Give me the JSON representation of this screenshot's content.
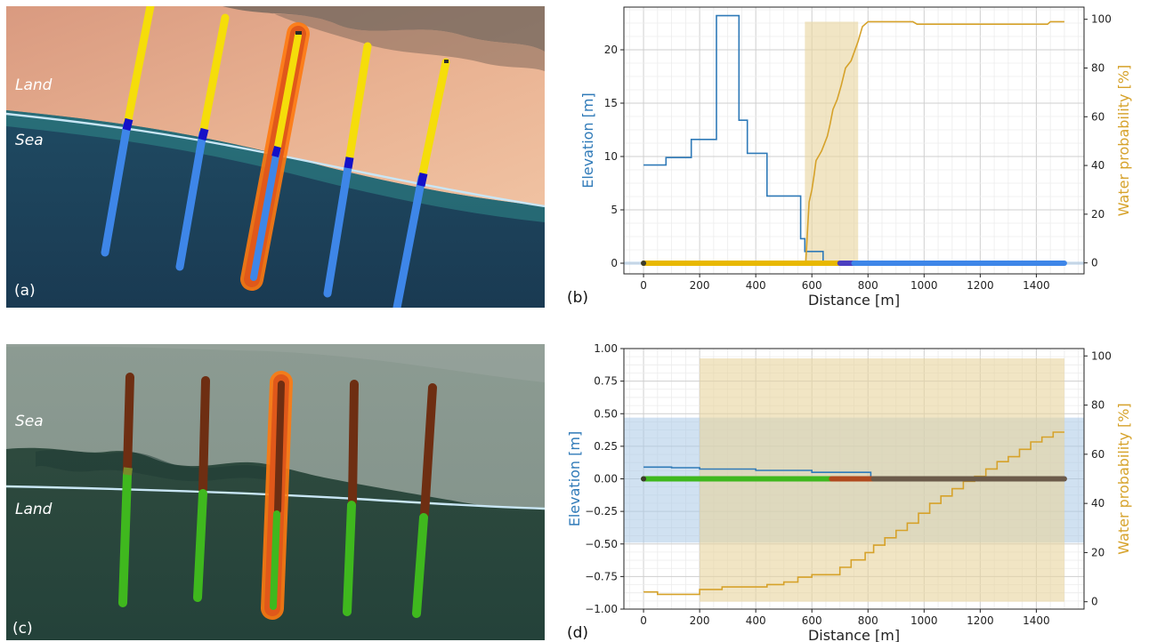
{
  "panels": {
    "a": {
      "label": "(a)",
      "upper_region": "Land",
      "lower_region": "Sea",
      "colors": {
        "upper": "#f5dd0a",
        "lower": "#3e86e8",
        "boundary": "#1410c8",
        "shoreline": "#c9e6f5",
        "highlight": "#ff7a10"
      },
      "transects": 5,
      "highlighted_transect": 3,
      "surface": "sandy desert coast with sea"
    },
    "c": {
      "label": "(c)",
      "upper_region": "Sea",
      "lower_region": "Land",
      "colors": {
        "upper": "#6e2e12",
        "lower": "#3fb81e",
        "boundary": "#7a8a2a",
        "shoreline": "#c9e6f5",
        "highlight": "#ff7a10"
      },
      "transects": 5,
      "highlighted_transect": 3,
      "surface": "dark vegetated coast with hazy sea"
    }
  },
  "chart_data": [
    {
      "id": "b",
      "label": "(b)",
      "type": "line",
      "xlabel": "Distance [m]",
      "ylabel": "Elevation [m]",
      "ylabel2": "Water probability [%]",
      "xlim": [
        -70,
        1570
      ],
      "ylim": [
        -1,
        24
      ],
      "ylim2": [
        -4.5,
        105
      ],
      "xticks": [
        0,
        200,
        400,
        600,
        800,
        1000,
        1200,
        1400
      ],
      "yticks": [
        0,
        5,
        10,
        15,
        20
      ],
      "yticks2": [
        0,
        20,
        40,
        60,
        80,
        100
      ],
      "grid": true,
      "band": {
        "color": "#e8d39c",
        "x": [
          575,
          765
        ],
        "y2": [
          0,
          99
        ]
      },
      "band2": {
        "color": "#aac8e6",
        "y": [
          -0.15,
          0.15
        ]
      },
      "series": [
        {
          "axis": "left",
          "color": "#2f7ab8",
          "x": [
            0,
            80,
            80,
            170,
            170,
            260,
            260,
            340,
            340,
            370,
            370,
            440,
            440,
            560,
            560,
            575,
            575,
            640,
            640,
            1500
          ],
          "y": [
            9.2,
            9.2,
            9.9,
            9.9,
            11.6,
            11.6,
            23.2,
            23.2,
            13.4,
            13.4,
            10.3,
            10.3,
            6.3,
            6.3,
            2.3,
            2.3,
            1.1,
            1.1,
            0,
            0
          ]
        },
        {
          "axis": "right",
          "color": "#d6a22a",
          "x": [
            0,
            578,
            590,
            600,
            608,
            615,
            625,
            635,
            645,
            655,
            665,
            675,
            690,
            705,
            720,
            740,
            765,
            780,
            800,
            960,
            975,
            1440,
            1450,
            1500
          ],
          "y": [
            0,
            0,
            25,
            30,
            36,
            42,
            44,
            46,
            49,
            52,
            57,
            63,
            67,
            73,
            80,
            83,
            91,
            97,
            99,
            99,
            98,
            98,
            99,
            99
          ]
        }
      ],
      "point_segments": [
        {
          "x": [
            0,
            700
          ],
          "color": "#e8b800"
        },
        {
          "x": [
            700,
            750
          ],
          "color": "#4b3fc0"
        },
        {
          "x": [
            750,
            1500
          ],
          "color": "#3e86e8"
        }
      ]
    },
    {
      "id": "d",
      "label": "(d)",
      "type": "line",
      "xlabel": "Distance [m]",
      "ylabel": "Elevation [m]",
      "ylabel2": "Water probability [%]",
      "xlim": [
        -70,
        1570
      ],
      "ylim": [
        -1.0,
        1.0
      ],
      "ylim2": [
        -3,
        103
      ],
      "xticks": [
        0,
        200,
        400,
        600,
        800,
        1000,
        1200,
        1400
      ],
      "yticks": [
        -1.0,
        -0.75,
        -0.5,
        -0.25,
        0.0,
        0.25,
        0.5,
        0.75,
        1.0
      ],
      "yticks_text": [
        "−1.00",
        "−0.75",
        "−0.50",
        "−0.25",
        "0.00",
        "0.25",
        "0.50",
        "0.75",
        "1.00"
      ],
      "yticks2": [
        0,
        20,
        40,
        60,
        80,
        100
      ],
      "grid": true,
      "band": {
        "color": "#e8d39c",
        "x": [
          200,
          1500
        ],
        "y2": [
          0,
          99
        ]
      },
      "band2": {
        "color": "#aac8e6",
        "y": [
          -0.49,
          0.47
        ]
      },
      "series": [
        {
          "axis": "left",
          "color": "#2f7ab8",
          "x": [
            0,
            100,
            100,
            200,
            200,
            400,
            400,
            600,
            600,
            810,
            810,
            1500
          ],
          "y": [
            0.09,
            0.09,
            0.085,
            0.085,
            0.075,
            0.075,
            0.065,
            0.065,
            0.05,
            0.05,
            0,
            0
          ]
        },
        {
          "axis": "right",
          "color": "#d6a22a",
          "x": [
            0,
            50,
            50,
            200,
            200,
            280,
            280,
            440,
            440,
            500,
            500,
            550,
            550,
            600,
            600,
            700,
            700,
            740,
            740,
            790,
            790,
            820,
            820,
            860,
            860,
            900,
            900,
            940,
            940,
            980,
            980,
            1020,
            1020,
            1060,
            1060,
            1100,
            1100,
            1140,
            1140,
            1180,
            1180,
            1220,
            1220,
            1260,
            1260,
            1300,
            1300,
            1340,
            1340,
            1380,
            1380,
            1420,
            1420,
            1460,
            1460,
            1500
          ],
          "y": [
            4,
            4,
            3,
            3,
            5,
            5,
            6,
            6,
            7,
            7,
            8,
            8,
            10,
            10,
            11,
            11,
            14,
            14,
            17,
            17,
            20,
            20,
            23,
            23,
            26,
            26,
            29,
            29,
            32,
            32,
            36,
            36,
            40,
            40,
            43,
            43,
            46,
            46,
            49,
            49,
            51,
            51,
            54,
            54,
            57,
            57,
            59,
            59,
            62,
            62,
            65,
            65,
            67,
            67,
            69,
            69
          ]
        }
      ],
      "point_segments": [
        {
          "x": [
            0,
            670
          ],
          "color": "#3fb81e"
        },
        {
          "x": [
            670,
            820
          ],
          "color": "#b04a1e"
        },
        {
          "x": [
            820,
            1500
          ],
          "color": "#6b5a4a"
        }
      ]
    }
  ]
}
